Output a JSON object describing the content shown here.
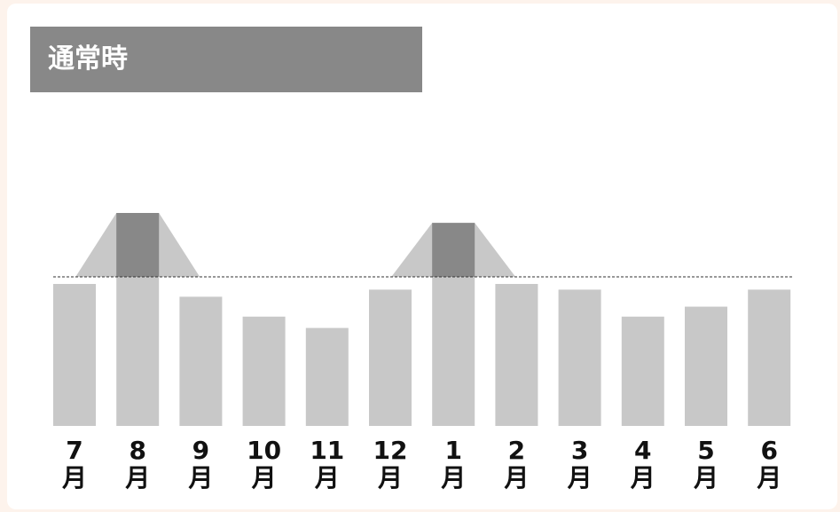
{
  "title": "通常時",
  "colors": {
    "bar": "#c8c8c8",
    "peak": "#888888",
    "peak_halo": "#c8c8c8",
    "baseline": "#333333",
    "title_bg": "#888888",
    "page_bg": "#fdf3ec"
  },
  "chart_data": {
    "type": "bar",
    "title": "通常時",
    "categories": [
      "7",
      "8",
      "9",
      "10",
      "11",
      "12",
      "1",
      "2",
      "3",
      "4",
      "5",
      "6"
    ],
    "unit_label": "月",
    "values": [
      100,
      150,
      91,
      77,
      69,
      96,
      143,
      100,
      96,
      77,
      84,
      96
    ],
    "peaks": [
      {
        "category": "8",
        "above_baseline": 45
      },
      {
        "category": "1",
        "above_baseline": 38
      }
    ],
    "reference_line": {
      "value": 105,
      "style": "dashed"
    },
    "ylim": [
      0,
      160
    ],
    "grid": false,
    "legend": "none"
  }
}
